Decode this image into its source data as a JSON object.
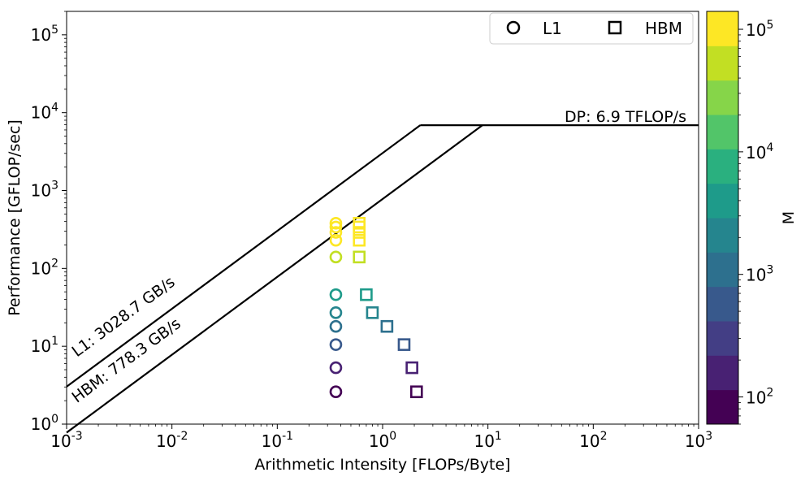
{
  "chart_data": {
    "type": "scatter",
    "title": "",
    "xlabel": "Arithmetic Intensity [FLOPs/Byte]",
    "ylabel": "Performance [GFLOP/sec]",
    "xscale": "log",
    "yscale": "log",
    "xlim": [
      0.001,
      1000
    ],
    "ylim": [
      1,
      200000
    ],
    "x_ticks": [
      {
        "base": "10",
        "exp": "-3",
        "value": 0.001
      },
      {
        "base": "10",
        "exp": "-2",
        "value": 0.01
      },
      {
        "base": "10",
        "exp": "-1",
        "value": 0.1
      },
      {
        "base": "10",
        "exp": "0",
        "value": 1
      },
      {
        "base": "10",
        "exp": "1",
        "value": 10
      },
      {
        "base": "10",
        "exp": "2",
        "value": 100
      },
      {
        "base": "10",
        "exp": "3",
        "value": 1000
      }
    ],
    "y_ticks": [
      {
        "base": "10",
        "exp": "0",
        "value": 1
      },
      {
        "base": "10",
        "exp": "1",
        "value": 10
      },
      {
        "base": "10",
        "exp": "2",
        "value": 100
      },
      {
        "base": "10",
        "exp": "3",
        "value": 1000
      },
      {
        "base": "10",
        "exp": "4",
        "value": 10000
      },
      {
        "base": "10",
        "exp": "5",
        "value": 100000
      }
    ],
    "rooflines": [
      {
        "name": "L1",
        "label": "L1: 3028.7 GB/s",
        "bandwidth": 3028.7,
        "ridge": 2.28
      },
      {
        "name": "HBM",
        "label": "HBM: 778.3 GB/s",
        "bandwidth": 778.3,
        "ridge": 8.87
      }
    ],
    "peak": {
      "label": "DP: 6.9 TFLOP/s",
      "value": 6900
    },
    "legend": {
      "position": "top-right",
      "entries": [
        {
          "label": "L1",
          "marker": "circle"
        },
        {
          "label": "HBM",
          "marker": "square"
        }
      ]
    },
    "series": [
      {
        "name": "L1",
        "marker": "circle",
        "points": [
          {
            "x": 0.36,
            "y": 2.6,
            "m": 70
          },
          {
            "x": 0.36,
            "y": 5.3,
            "m": 150
          },
          {
            "x": 0.36,
            "y": 10.5,
            "m": 300
          },
          {
            "x": 0.36,
            "y": 18,
            "m": 600
          },
          {
            "x": 0.36,
            "y": 27,
            "m": 1200
          },
          {
            "x": 0.36,
            "y": 46,
            "m": 2500
          },
          {
            "x": 0.36,
            "y": 140,
            "m": 20000
          },
          {
            "x": 0.36,
            "y": 230,
            "m": 40000
          },
          {
            "x": 0.36,
            "y": 290,
            "m": 60000
          },
          {
            "x": 0.36,
            "y": 340,
            "m": 85000
          },
          {
            "x": 0.36,
            "y": 380,
            "m": 120000
          }
        ]
      },
      {
        "name": "HBM",
        "marker": "square",
        "points": [
          {
            "x": 2.1,
            "y": 2.6,
            "m": 70
          },
          {
            "x": 1.9,
            "y": 5.3,
            "m": 150
          },
          {
            "x": 1.6,
            "y": 10.5,
            "m": 300
          },
          {
            "x": 1.1,
            "y": 18,
            "m": 600
          },
          {
            "x": 0.8,
            "y": 27,
            "m": 1200
          },
          {
            "x": 0.7,
            "y": 46,
            "m": 2500
          },
          {
            "x": 0.6,
            "y": 140,
            "m": 20000
          },
          {
            "x": 0.6,
            "y": 230,
            "m": 40000
          },
          {
            "x": 0.6,
            "y": 290,
            "m": 60000
          },
          {
            "x": 0.6,
            "y": 340,
            "m": 85000
          },
          {
            "x": 0.6,
            "y": 380,
            "m": 120000
          }
        ]
      }
    ],
    "colorbar": {
      "label": "M",
      "scale": "log",
      "range": [
        60,
        140000
      ],
      "levels": [
        60,
        110,
        180,
        300,
        500,
        900,
        1600,
        2700,
        4800,
        8500,
        15000,
        26000,
        45000,
        80000,
        140000
      ],
      "colors": [
        "#440154",
        "#482173",
        "#433e85",
        "#38598c",
        "#2d708e",
        "#25858e",
        "#1e9b8a",
        "#2ab07f",
        "#52c569",
        "#86d549",
        "#c2df23",
        "#fde725"
      ],
      "ticks": [
        {
          "base": "10",
          "exp": "2",
          "value": 100
        },
        {
          "base": "10",
          "exp": "3",
          "value": 1000
        },
        {
          "base": "10",
          "exp": "4",
          "value": 10000
        },
        {
          "base": "10",
          "exp": "5",
          "value": 100000
        }
      ]
    }
  }
}
